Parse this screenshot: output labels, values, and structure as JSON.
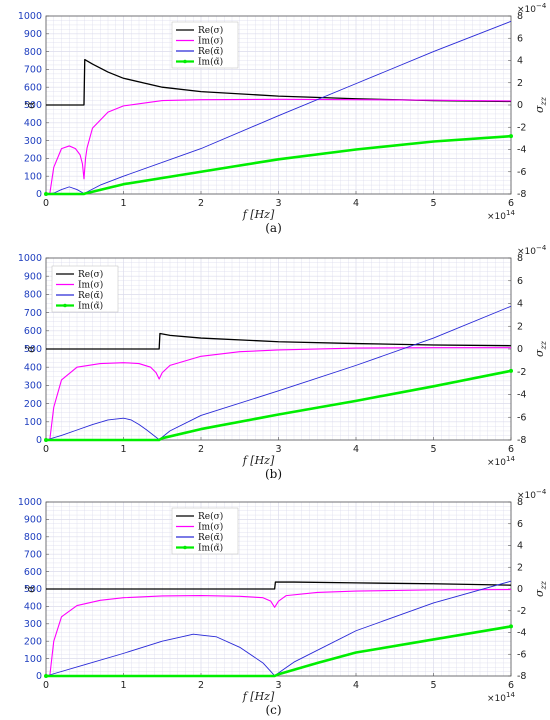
{
  "colors": {
    "re_sigma": "#000000",
    "im_sigma": "#ff00ff",
    "re_alpha": "#2a2ad8",
    "im_alpha": "#00ee00",
    "left_axis": "#1f3fbf",
    "grid": "#dcdcec"
  },
  "chart_data": [
    {
      "type": "line",
      "caption": "(a)",
      "xlabel": "f [Hz]",
      "x_exponent": "×10^14",
      "xlim": [
        0,
        6
      ],
      "x_ticks": [
        0,
        1,
        2,
        3,
        4,
        5,
        6
      ],
      "ylabel_left": "α̃",
      "ylim_left": [
        0,
        1000
      ],
      "y_ticks_left": [
        0,
        100,
        200,
        300,
        400,
        500,
        600,
        700,
        800,
        900,
        1000
      ],
      "ylabel_right": "σzz",
      "y_exponent_right": "×10^-4",
      "ylim_right": [
        -8,
        8
      ],
      "y_ticks_right": [
        -8,
        -6,
        -4,
        -2,
        0,
        2,
        4,
        6,
        8
      ],
      "legend": [
        "Re(σ)",
        "Im(σ)",
        "Re(α̃)",
        "Im(α̃)"
      ],
      "legend_position": "top-center",
      "series": [
        {
          "name": "Re(σ)",
          "x": [
            0,
            0.48,
            0.49,
            0.5,
            0.6,
            0.8,
            1.0,
            1.5,
            2.0,
            3.0,
            4.0,
            5.0,
            6.0
          ],
          "y": [
            500,
            500,
            500,
            755,
            730,
            685,
            650,
            600,
            575,
            550,
            535,
            525,
            520
          ]
        },
        {
          "name": "Im(σ)",
          "x": [
            0,
            0.05,
            0.1,
            0.2,
            0.3,
            0.38,
            0.44,
            0.47,
            0.49,
            0.51,
            0.53,
            0.6,
            0.8,
            1.0,
            1.5,
            2.0,
            3.0,
            4.0,
            5.0,
            6.0
          ],
          "y": [
            0,
            5,
            150,
            255,
            270,
            255,
            220,
            170,
            85,
            200,
            260,
            370,
            460,
            495,
            525,
            530,
            532,
            530,
            527,
            523
          ]
        },
        {
          "name": "Re(α̃)",
          "x": [
            0,
            0.1,
            0.2,
            0.3,
            0.4,
            0.49,
            0.5,
            0.7,
            1.0,
            2.0,
            3.0,
            4.0,
            5.0,
            6.0
          ],
          "y": [
            0,
            5,
            25,
            40,
            25,
            3,
            5,
            50,
            100,
            255,
            440,
            620,
            800,
            970
          ]
        },
        {
          "name": "Im(α̃)",
          "x": [
            0,
            0.49,
            0.5,
            1.0,
            2.0,
            3.0,
            4.0,
            5.0,
            6.0
          ],
          "y": [
            0,
            0,
            2,
            55,
            125,
            195,
            250,
            295,
            325
          ]
        }
      ]
    },
    {
      "type": "line",
      "caption": "(b)",
      "xlabel": "f [Hz]",
      "x_exponent": "×10^14",
      "xlim": [
        0,
        6
      ],
      "x_ticks": [
        0,
        1,
        2,
        3,
        4,
        5,
        6
      ],
      "ylabel_left": "α̃",
      "ylim_left": [
        0,
        1000
      ],
      "y_ticks_left": [
        0,
        100,
        200,
        300,
        400,
        500,
        600,
        700,
        800,
        900,
        1000
      ],
      "ylabel_right": "σzz",
      "y_exponent_right": "×10^-4",
      "ylim_right": [
        -8,
        8
      ],
      "y_ticks_right": [
        -8,
        -6,
        -4,
        -2,
        0,
        2,
        4,
        6,
        8
      ],
      "legend": [
        "Re(σ)",
        "Im(σ)",
        "Re(α̃)",
        "Im(α̃)"
      ],
      "legend_position": "top-left",
      "series": [
        {
          "name": "Re(σ)",
          "x": [
            0,
            1.45,
            1.46,
            1.47,
            1.6,
            2.0,
            3.0,
            4.0,
            5.0,
            6.0
          ],
          "y": [
            500,
            500,
            500,
            585,
            575,
            560,
            540,
            530,
            522,
            518
          ]
        },
        {
          "name": "Im(σ)",
          "x": [
            0,
            0.05,
            0.1,
            0.2,
            0.4,
            0.7,
            1.0,
            1.2,
            1.35,
            1.42,
            1.46,
            1.5,
            1.6,
            2.0,
            2.5,
            3.0,
            4.0,
            5.0,
            6.0
          ],
          "y": [
            0,
            5,
            180,
            330,
            400,
            420,
            425,
            420,
            400,
            370,
            335,
            370,
            410,
            460,
            485,
            495,
            505,
            507,
            507
          ]
        },
        {
          "name": "Re(α̃)",
          "x": [
            0,
            0.2,
            0.4,
            0.6,
            0.8,
            1.0,
            1.1,
            1.2,
            1.3,
            1.46,
            1.6,
            2.0,
            3.0,
            4.0,
            5.0,
            6.0
          ],
          "y": [
            0,
            25,
            55,
            85,
            110,
            120,
            110,
            85,
            55,
            2,
            50,
            135,
            270,
            410,
            560,
            735
          ]
        },
        {
          "name": "Im(α̃)",
          "x": [
            0,
            1.46,
            1.5,
            2.0,
            3.0,
            4.0,
            5.0,
            6.0
          ],
          "y": [
            0,
            0,
            10,
            60,
            140,
            215,
            295,
            380
          ]
        }
      ]
    },
    {
      "type": "line",
      "caption": "(c)",
      "xlabel": "f [Hz]",
      "x_exponent": "×10^14",
      "xlim": [
        0,
        6
      ],
      "x_ticks": [
        0,
        1,
        2,
        3,
        4,
        5,
        6
      ],
      "ylabel_left": "α̃",
      "ylim_left": [
        0,
        1000
      ],
      "y_ticks_left": [
        0,
        100,
        200,
        300,
        400,
        500,
        600,
        700,
        800,
        900,
        1000
      ],
      "ylabel_right": "σzz",
      "y_exponent_right": "×10^-4",
      "ylim_right": [
        -8,
        8
      ],
      "y_ticks_right": [
        -8,
        -6,
        -4,
        -2,
        0,
        2,
        4,
        6,
        8
      ],
      "legend": [
        "Re(σ)",
        "Im(σ)",
        "Re(α̃)",
        "Im(α̃)"
      ],
      "legend_position": "top-center",
      "series": [
        {
          "name": "Re(σ)",
          "x": [
            0,
            2.94,
            2.95,
            2.96,
            3.2,
            4.0,
            5.0,
            6.0
          ],
          "y": [
            500,
            500,
            500,
            540,
            540,
            535,
            530,
            522
          ]
        },
        {
          "name": "Im(σ)",
          "x": [
            0,
            0.05,
            0.1,
            0.2,
            0.4,
            0.7,
            1.0,
            1.5,
            2.0,
            2.5,
            2.8,
            2.9,
            2.95,
            3.0,
            3.1,
            3.5,
            4.0,
            5.0,
            6.0
          ],
          "y": [
            0,
            5,
            200,
            340,
            405,
            435,
            450,
            460,
            462,
            458,
            450,
            430,
            395,
            430,
            462,
            480,
            488,
            495,
            497
          ]
        },
        {
          "name": "Re(α̃)",
          "x": [
            0,
            0.5,
            1.0,
            1.5,
            1.9,
            2.2,
            2.5,
            2.8,
            2.95,
            3.2,
            4.0,
            5.0,
            6.0
          ],
          "y": [
            0,
            65,
            130,
            200,
            240,
            225,
            165,
            75,
            2,
            80,
            260,
            420,
            545
          ]
        },
        {
          "name": "Im(α̃)",
          "x": [
            0,
            2.95,
            3.0,
            3.5,
            4.0,
            5.0,
            6.0
          ],
          "y": [
            0,
            0,
            10,
            75,
            135,
            210,
            285
          ]
        }
      ]
    }
  ]
}
